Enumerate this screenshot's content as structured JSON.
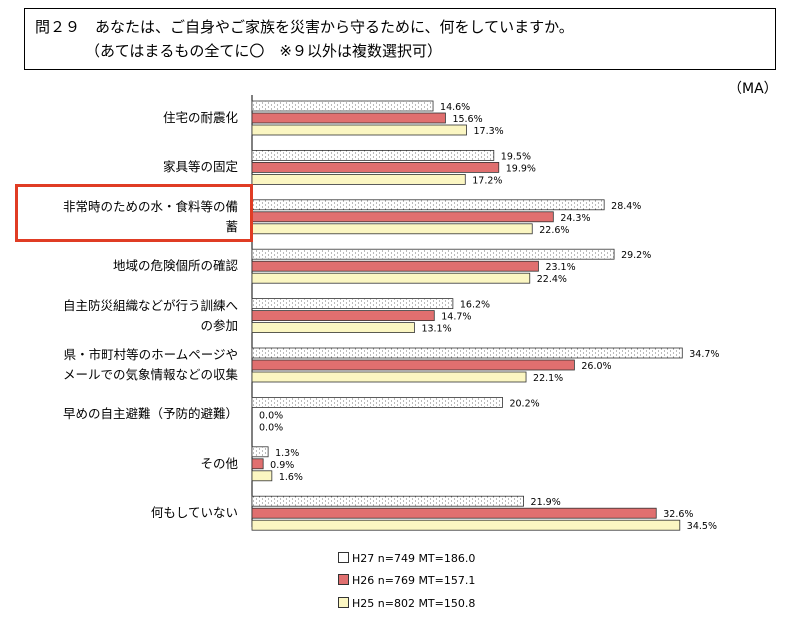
{
  "question": {
    "line1": "問２９　あなたは、ご自身やご家族を災害から守るために、何をしていますか。",
    "line2": "（あてはまるもの全てに〇　※９以外は複数選択可）"
  },
  "response_type": "（MA）",
  "colors": {
    "h27": "#ffffff",
    "h26": "#e06f6f",
    "h25": "#fbf6c2",
    "highlight": "#e03c24"
  },
  "chart_data": {
    "type": "bar",
    "orientation": "horizontal",
    "categories": [
      "住宅の耐震化",
      "家具等の固定",
      "非常時のための水・食料等の備蓄",
      "地域の危険個所の確認",
      "自主防災組織などが行う訓練への参加",
      "県・市町村等のホームページやメールでの気象情報などの収集",
      "早めの自主避難（予防的避難）",
      "その他",
      "何もしていない"
    ],
    "category_lines": [
      [
        "住宅の耐震化"
      ],
      [
        "家具等の固定"
      ],
      [
        "非常時のための水・食料等の備",
        "蓄"
      ],
      [
        "地域の危険個所の確認"
      ],
      [
        "自主防災組織などが行う訓練へ",
        "の参加"
      ],
      [
        "県・市町村等のホームページや",
        "メールでの気象情報などの収集"
      ],
      [
        "早めの自主避難（予防的避難）"
      ],
      [
        "その他"
      ],
      [
        "何もしていない"
      ]
    ],
    "highlighted_category": 2,
    "series": [
      {
        "name": "H27 n=749 MT=186.0",
        "key": "h27",
        "values": [
          14.6,
          19.5,
          28.4,
          29.2,
          16.2,
          34.7,
          20.2,
          1.3,
          21.9
        ]
      },
      {
        "name": "H26 n=769 MT=157.1",
        "key": "h26",
        "values": [
          15.6,
          19.9,
          24.3,
          23.1,
          14.7,
          26.0,
          0.0,
          0.9,
          32.6
        ]
      },
      {
        "name": "H25 n=802 MT=150.8",
        "key": "h25",
        "values": [
          17.3,
          17.2,
          22.6,
          22.4,
          13.1,
          22.1,
          0.0,
          1.6,
          34.5
        ]
      }
    ],
    "value_suffix": "%",
    "xlim": [
      0,
      40
    ],
    "legend_position": "bottom"
  }
}
